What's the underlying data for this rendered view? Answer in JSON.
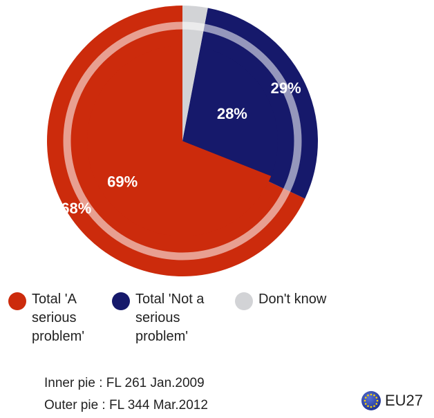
{
  "chart_data": {
    "type": "pie",
    "rings": [
      {
        "name": "Inner pie",
        "values": [
          {
            "category": "Total 'A serious problem'",
            "value": 69,
            "label": "69%"
          },
          {
            "category": "Total 'Not a serious problem'",
            "value": 28,
            "label": "28%"
          },
          {
            "category": "Don't know",
            "value": 3,
            "label": ""
          }
        ]
      },
      {
        "name": "Outer pie",
        "values": [
          {
            "category": "Total 'A serious problem'",
            "value": 68,
            "label": "68%"
          },
          {
            "category": "Total 'Not a serious problem'",
            "value": 29,
            "label": "29%"
          },
          {
            "category": "Don't know",
            "value": 3,
            "label": ""
          }
        ]
      }
    ],
    "colors": [
      "#cc2b0c",
      "#16196b",
      "#d2d3d6"
    ],
    "legend": [
      {
        "label": "Total 'A\nserious\nproblem'",
        "color": "#cc2b0c"
      },
      {
        "label": "Total 'Not a\nserious\nproblem'",
        "color": "#16196b"
      },
      {
        "label": "Don't know",
        "color": "#d2d3d6"
      }
    ],
    "legend_position": "bottom"
  },
  "sources": [
    {
      "text": "Inner pie :  FL 261 Jan.2009"
    },
    {
      "text": "Outer pie :  FL 344 Mar.2012"
    }
  ],
  "badge": {
    "label": "EU27",
    "icon": "eu-flag-icon"
  }
}
